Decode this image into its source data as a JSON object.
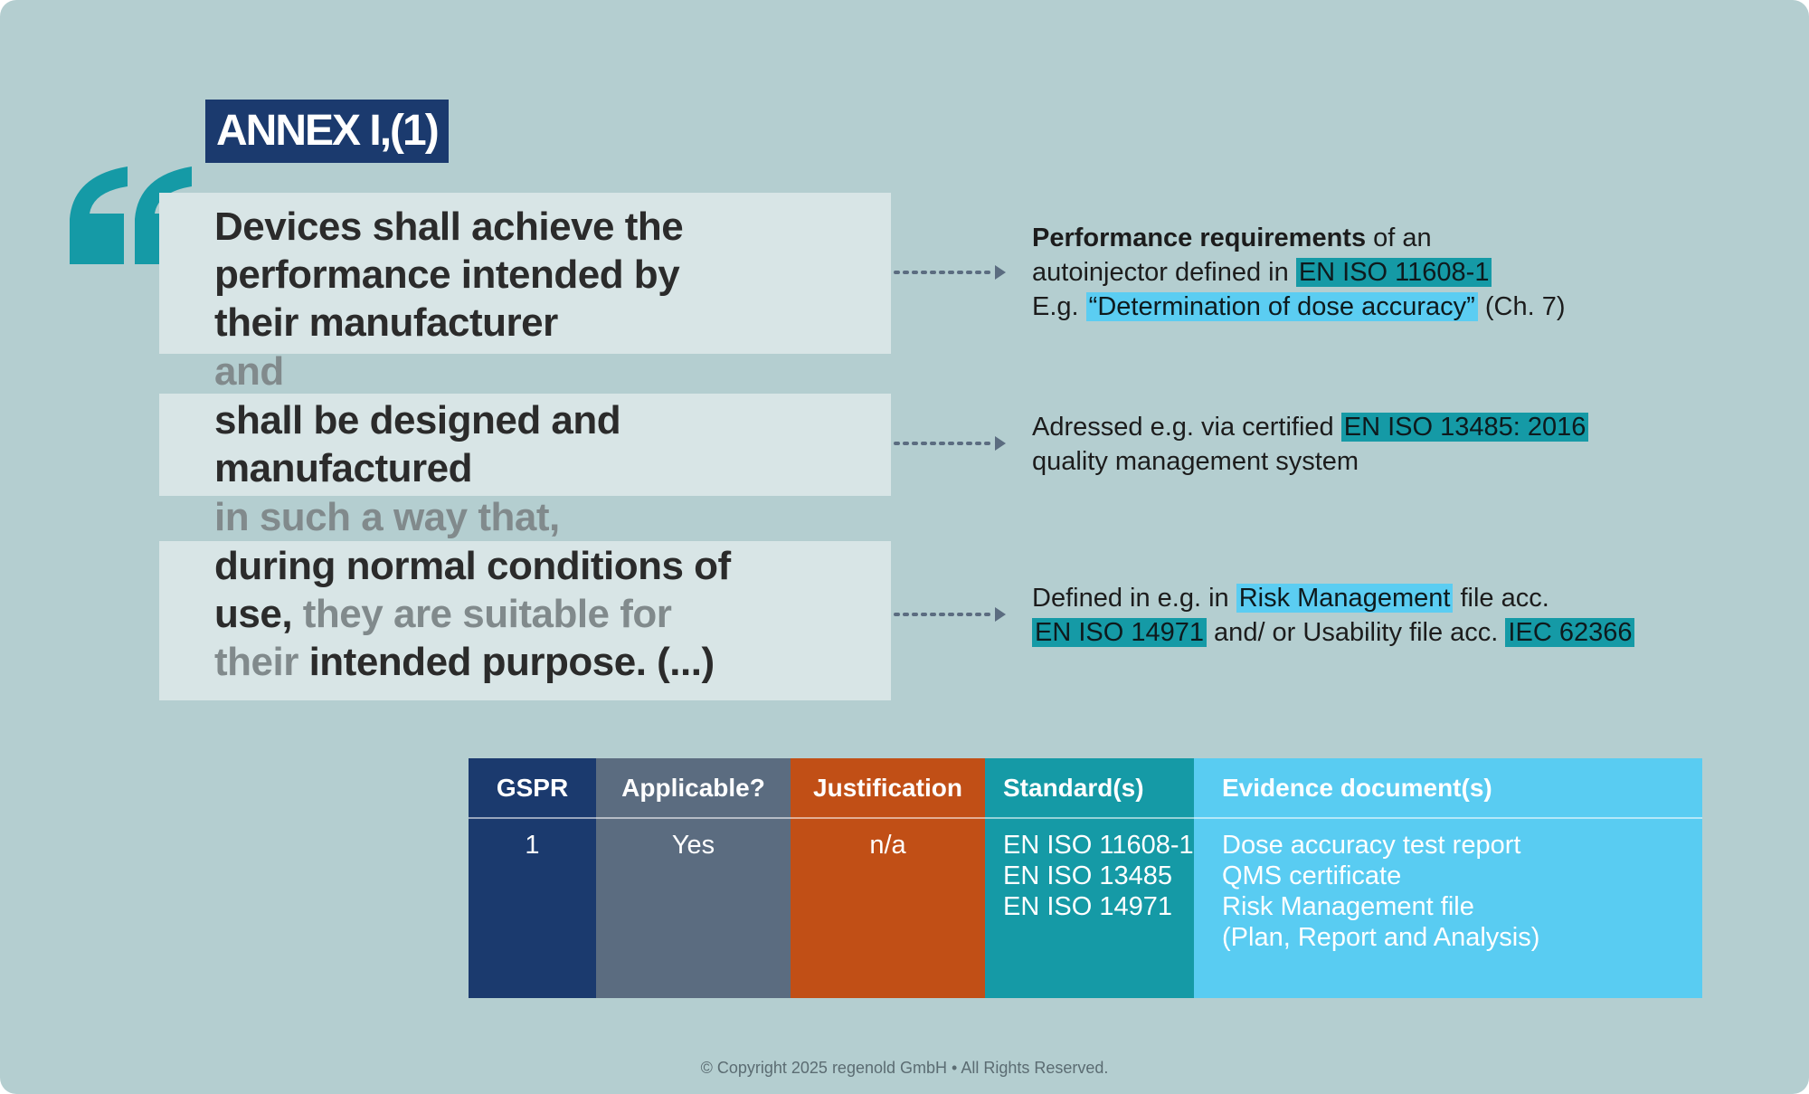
{
  "annex_label": "ANNEX I,(1)",
  "quote": {
    "line1": "Devices shall achieve the",
    "line2": "performance intended by",
    "line3": "their manufacturer",
    "connector1": "and",
    "line4": "shall be designed and",
    "line5": "manufactured",
    "connector2": "in such a way that,",
    "line6": "during normal conditions of",
    "line7a": "use,",
    "line7b": " they are suitable for",
    "line8a": "their",
    "line8b": " intended purpose. (...)"
  },
  "notes": {
    "perf": {
      "bold": "Performance requirements",
      "rest1": " of an",
      "line2_pre": "autoinjector defined in ",
      "line2_hl": "EN ISO 11608-1",
      "line3_pre": "E.g. ",
      "line3_hl": "“Determination of dose accuracy”",
      "line3_post": " (Ch. 7)"
    },
    "qms": {
      "line1_pre": "Adressed e.g. via certified ",
      "line1_hl": "EN ISO 13485: 2016",
      "line2": "quality management system"
    },
    "risk": {
      "line1_pre": "Defined in e.g. in ",
      "line1_hl": "Risk Management",
      "line1_post": " file acc.",
      "line2_hl1": "EN ISO 14971",
      "line2_mid": " and/ or Usability file acc. ",
      "line2_hl2": "IEC 62366"
    }
  },
  "table": {
    "headers": [
      "GSPR",
      "Applicable?",
      "Justification",
      "Standard(s)",
      "Evidence document(s)"
    ],
    "row": {
      "gspr": "1",
      "applicable": "Yes",
      "justification": "n/a",
      "standards": [
        "EN ISO 11608-1",
        "EN ISO 13485",
        "EN ISO 14971"
      ],
      "evidence": [
        "Dose accuracy test report",
        "QMS certificate",
        "Risk Management file",
        "(Plan, Report and Analysis)"
      ]
    }
  },
  "footer": "© Copyright 2025 regenold GmbH • All Rights Reserved.",
  "colors": {
    "background": "#b4ced0",
    "navy": "#1b3a6e",
    "slate": "#5b6c80",
    "orange": "#c14f16",
    "teal": "#159aa6",
    "cyan": "#59ccf2",
    "quote_box": "#d8e5e6"
  }
}
